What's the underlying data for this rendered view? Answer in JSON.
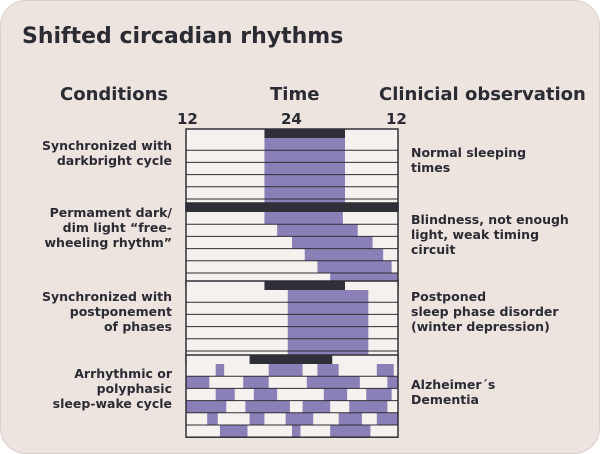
{
  "title": "Shifted circadian rhythms",
  "headers": {
    "conditions": "Conditions",
    "time": "Time",
    "observation": "Clinicial observation"
  },
  "time_ticks": [
    "12",
    "24",
    "12"
  ],
  "colors": {
    "background": "#ede4e0",
    "row_fill": "#f4f1ee",
    "sleep": "#8b7fb7",
    "bar": "#2e2f37",
    "text": "#2b2b33"
  },
  "panels": [
    {
      "condition": [
        "Synchronized with",
        "darkbright cycle"
      ],
      "observation": [
        "Normal sleeping",
        "times"
      ],
      "dark_bar": [
        0.37,
        0.75
      ],
      "rows": [
        [
          [
            0.37,
            0.75
          ]
        ],
        [
          [
            0.37,
            0.75
          ]
        ],
        [
          [
            0.37,
            0.75
          ]
        ],
        [
          [
            0.37,
            0.75
          ]
        ],
        [
          [
            0.37,
            0.75
          ]
        ],
        [
          [
            0.37,
            0.75
          ]
        ]
      ]
    },
    {
      "condition": [
        "Permament dark/",
        "dim light “free-",
        "wheeling rhythm”"
      ],
      "observation": [
        "Blindness, not enough",
        "light, weak timing",
        "circuit"
      ],
      "dark_bar": [
        0.0,
        1.0
      ],
      "rows": [
        [
          [
            0.37,
            0.74
          ]
        ],
        [
          [
            0.43,
            0.81
          ]
        ],
        [
          [
            0.5,
            0.88
          ]
        ],
        [
          [
            0.56,
            0.93
          ]
        ],
        [
          [
            0.62,
            0.97
          ]
        ],
        [
          [
            0.68,
            1.0
          ]
        ]
      ]
    },
    {
      "condition": [
        "Synchronized with",
        "postponement",
        "of phases"
      ],
      "observation": [
        "Postponed",
        "sleep phase disorder",
        "(winter depression)"
      ],
      "dark_bar": [
        0.37,
        0.75
      ],
      "rows": [
        [
          [
            0.48,
            0.86
          ]
        ],
        [
          [
            0.48,
            0.86
          ]
        ],
        [
          [
            0.48,
            0.86
          ]
        ],
        [
          [
            0.48,
            0.86
          ]
        ],
        [
          [
            0.48,
            0.86
          ]
        ],
        [
          [
            0.48,
            0.86
          ]
        ]
      ]
    },
    {
      "condition": [
        "Arrhythmic or",
        "polyphasic",
        "sleep-wake cycle"
      ],
      "observation": [
        "Alzheimer´s",
        "Dementia"
      ],
      "dark_bar": [
        0.3,
        0.69
      ],
      "rows": [
        [
          [
            0.14,
            0.18
          ],
          [
            0.39,
            0.55
          ],
          [
            0.62,
            0.72
          ],
          [
            0.9,
            0.98
          ]
        ],
        [
          [
            0.0,
            0.11
          ],
          [
            0.27,
            0.39
          ],
          [
            0.57,
            0.82
          ],
          [
            0.95,
            1.0
          ]
        ],
        [
          [
            0.14,
            0.23
          ],
          [
            0.32,
            0.43
          ],
          [
            0.65,
            0.76
          ],
          [
            0.85,
            0.97
          ]
        ],
        [
          [
            0.0,
            0.19
          ],
          [
            0.28,
            0.49
          ],
          [
            0.55,
            0.68
          ],
          [
            0.77,
            0.95
          ]
        ],
        [
          [
            0.1,
            0.15
          ],
          [
            0.3,
            0.37
          ],
          [
            0.47,
            0.6
          ],
          [
            0.72,
            0.83
          ],
          [
            0.9,
            1.0
          ]
        ],
        [
          [
            0.16,
            0.29
          ],
          [
            0.5,
            0.54
          ],
          [
            0.68,
            0.87
          ]
        ]
      ]
    }
  ]
}
